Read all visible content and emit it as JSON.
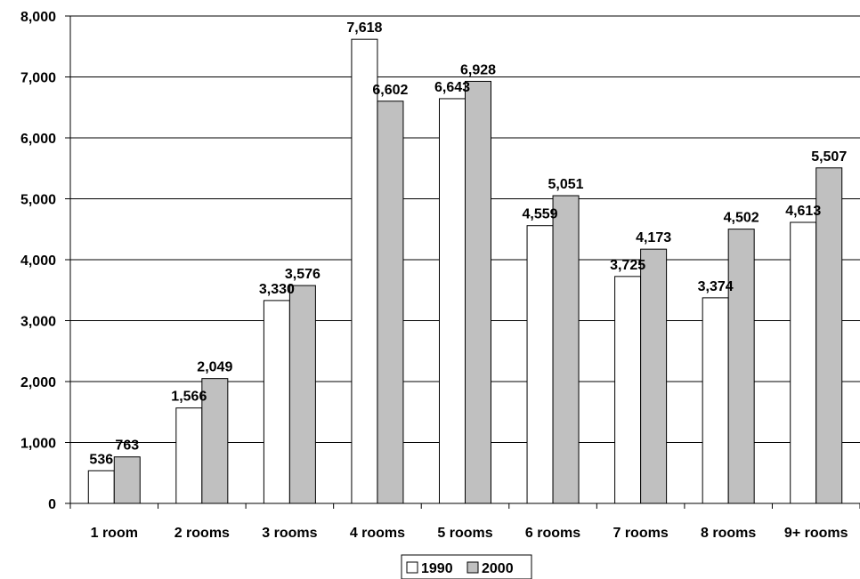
{
  "chart_data": {
    "type": "bar",
    "title": "",
    "xlabel": "",
    "ylabel": "",
    "ylim": [
      0,
      8000
    ],
    "yticks": [
      "0",
      "1,000",
      "2,000",
      "3,000",
      "4,000",
      "5,000",
      "6,000",
      "7,000",
      "8,000"
    ],
    "grid": true,
    "legend_position": "bottom",
    "categories": [
      "1 room",
      "2 rooms",
      "3 rooms",
      "4 rooms",
      "5 rooms",
      "6 rooms",
      "7 rooms",
      "8 rooms",
      "9+ rooms"
    ],
    "series": [
      {
        "name": "1990",
        "color": "#ffffff",
        "values": [
          536,
          1566,
          3330,
          7618,
          6643,
          4559,
          3725,
          3374,
          4613
        ],
        "labels": [
          "536",
          "1,566",
          "3,330",
          "7,618",
          "6,643",
          "4,559",
          "3,725",
          "3,374",
          "4,613"
        ]
      },
      {
        "name": "2000",
        "color": "#c0c0c0",
        "values": [
          763,
          2049,
          3576,
          6602,
          6928,
          5051,
          4173,
          4502,
          5507
        ],
        "labels": [
          "763",
          "2,049",
          "3,576",
          "6,602",
          "6,928",
          "5,051",
          "4,173",
          "4,502",
          "5,507"
        ]
      }
    ]
  }
}
